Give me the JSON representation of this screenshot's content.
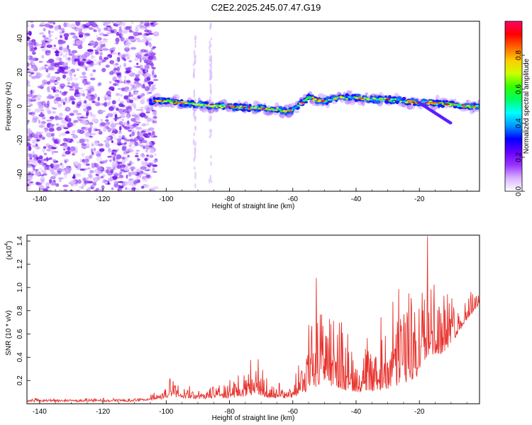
{
  "title": "C2E2.2025.245.07.47.G19",
  "chart_data": [
    {
      "type": "heatmap",
      "xlabel": "Height of straight line (km)",
      "ylabel": "Frequency (Hz)",
      "xlim": [
        -144,
        -1
      ],
      "ylim": [
        -50,
        50
      ],
      "xticks": [
        -140,
        -120,
        -100,
        -80,
        -60,
        -40,
        -20
      ],
      "yticks": [
        -40,
        -20,
        0,
        20,
        40
      ],
      "colorbar": {
        "label": "Normalized spectral amplitude",
        "range": [
          0,
          1
        ],
        "ticks": [
          "0.0",
          "0.2",
          "0.4",
          "0.6",
          "0.8"
        ],
        "colors": [
          "#ffffff",
          "#d9b3ff",
          "#9933ff",
          "#6600ff",
          "#0000ff",
          "#0099ff",
          "#00ffff",
          "#00ff66",
          "#33ff00",
          "#ccff00",
          "#ffcc00",
          "#ff6600",
          "#ff0000",
          "#ff0066"
        ]
      },
      "noise_region": {
        "x": [
          -144,
          -105
        ],
        "y": [
          -50,
          50
        ]
      },
      "signal_track": [
        {
          "x": -105,
          "f": 3
        },
        {
          "x": -100,
          "f": 3
        },
        {
          "x": -95,
          "f": 2
        },
        {
          "x": -90,
          "f": 1
        },
        {
          "x": -85,
          "f": 0
        },
        {
          "x": -80,
          "f": 0
        },
        {
          "x": -75,
          "f": -1
        },
        {
          "x": -70,
          "f": -1
        },
        {
          "x": -65,
          "f": -2
        },
        {
          "x": -62,
          "f": -3
        },
        {
          "x": -60,
          "f": -2
        },
        {
          "x": -57,
          "f": 2
        },
        {
          "x": -55,
          "f": 5
        },
        {
          "x": -50,
          "f": 3
        },
        {
          "x": -45,
          "f": 5
        },
        {
          "x": -40,
          "f": 5
        },
        {
          "x": -35,
          "f": 4
        },
        {
          "x": -30,
          "f": 4
        },
        {
          "x": -25,
          "f": 3
        },
        {
          "x": -20,
          "f": 2
        },
        {
          "x": -15,
          "f": 2
        },
        {
          "x": -10,
          "f": 1
        },
        {
          "x": -5,
          "f": 0
        },
        {
          "x": -1,
          "f": 0
        }
      ],
      "branch": [
        {
          "x": -20,
          "f": 2
        },
        {
          "x": -15,
          "f": -4
        },
        {
          "x": -10,
          "f": -10
        }
      ],
      "vertical_streaks": [
        -91,
        -86
      ]
    },
    {
      "type": "line",
      "xlabel": "Height of straight line (km)",
      "ylabel": "SNR (10 * v/v)",
      "scale_label": "(x10",
      "scale_exp": "4",
      "xlim": [
        -144,
        -1
      ],
      "ylim": [
        0,
        1.45
      ],
      "xticks": [
        -140,
        -120,
        -100,
        -80,
        -60,
        -40,
        -20
      ],
      "yticks": [
        "0.2",
        "0.4",
        "0.6",
        "0.8",
        "1.0",
        "1.2",
        "1.4"
      ],
      "color": "#e8322c",
      "envelope": [
        {
          "x": -144,
          "base": 0.02,
          "amp": 0.02
        },
        {
          "x": -110,
          "base": 0.02,
          "amp": 0.02
        },
        {
          "x": -102,
          "base": 0.04,
          "amp": 0.04
        },
        {
          "x": -98,
          "base": 0.06,
          "amp": 0.15
        },
        {
          "x": -95,
          "base": 0.05,
          "amp": 0.08
        },
        {
          "x": -90,
          "base": 0.04,
          "amp": 0.05
        },
        {
          "x": -85,
          "base": 0.05,
          "amp": 0.09
        },
        {
          "x": -80,
          "base": 0.05,
          "amp": 0.12
        },
        {
          "x": -75,
          "base": 0.06,
          "amp": 0.18
        },
        {
          "x": -72,
          "base": 0.08,
          "amp": 0.28
        },
        {
          "x": -68,
          "base": 0.05,
          "amp": 0.12
        },
        {
          "x": -64,
          "base": 0.05,
          "amp": 0.1
        },
        {
          "x": -60,
          "base": 0.05,
          "amp": 0.15
        },
        {
          "x": -57,
          "base": 0.08,
          "amp": 0.28
        },
        {
          "x": -54,
          "base": 0.12,
          "amp": 0.55
        },
        {
          "x": -51,
          "base": 0.18,
          "amp": 0.82
        },
        {
          "x": -48,
          "base": 0.15,
          "amp": 0.55
        },
        {
          "x": -44,
          "base": 0.12,
          "amp": 0.45
        },
        {
          "x": -40,
          "base": 0.1,
          "amp": 0.32
        },
        {
          "x": -35,
          "base": 0.1,
          "amp": 0.35
        },
        {
          "x": -31,
          "base": 0.12,
          "amp": 0.45
        },
        {
          "x": -27,
          "base": 0.15,
          "amp": 0.62
        },
        {
          "x": -24,
          "base": 0.16,
          "amp": 0.68
        },
        {
          "x": -21,
          "base": 0.22,
          "amp": 0.6
        },
        {
          "x": -18,
          "base": 0.4,
          "amp": 0.9
        },
        {
          "x": -15,
          "base": 0.4,
          "amp": 0.5
        },
        {
          "x": -12,
          "base": 0.45,
          "amp": 0.4
        },
        {
          "x": -9,
          "base": 0.55,
          "amp": 0.25
        },
        {
          "x": -5,
          "base": 0.72,
          "amp": 0.15
        },
        {
          "x": -1,
          "base": 0.85,
          "amp": 0.18
        }
      ],
      "peak": {
        "x": -17.5,
        "y": 1.44
      }
    }
  ]
}
